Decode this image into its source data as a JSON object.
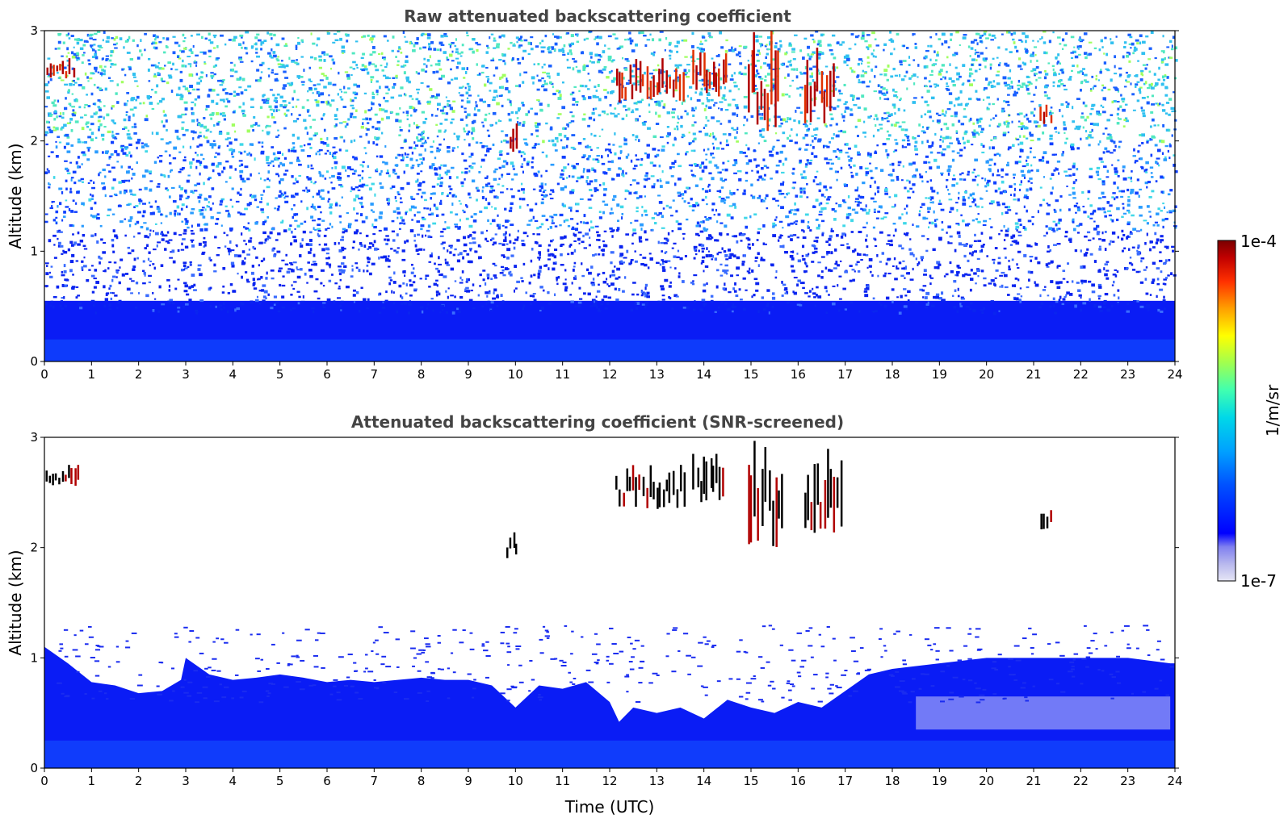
{
  "chart_data": [
    {
      "type": "heatmap",
      "title": "Raw attenuated backscattering coefficient",
      "xlabel": "",
      "ylabel": "Altitude (km)",
      "xlim": [
        0,
        24
      ],
      "ylim": [
        0,
        3
      ],
      "x_ticks": [
        "0",
        "1",
        "2",
        "3",
        "4",
        "5",
        "6",
        "7",
        "8",
        "9",
        "10",
        "11",
        "12",
        "13",
        "14",
        "15",
        "16",
        "17",
        "18",
        "19",
        "20",
        "21",
        "22",
        "23",
        "24"
      ],
      "y_ticks": [
        "0",
        "1",
        "2",
        "3"
      ],
      "grid": false,
      "background_signal": "boundary layer below ~0.5 km strongest (blue), noisy speckle above fading to sparse cyan/green near 3 km",
      "features": [
        {
          "time_start": 0.0,
          "time_end": 0.65,
          "alt_bottom": 2.55,
          "alt_top": 2.75,
          "level": "1e-4"
        },
        {
          "time_start": 9.85,
          "time_end": 10.05,
          "alt_bottom": 1.85,
          "alt_top": 2.2,
          "level": "1e-4"
        },
        {
          "time_start": 12.1,
          "time_end": 13.6,
          "alt_bottom": 2.35,
          "alt_top": 2.75,
          "level": "1e-4"
        },
        {
          "time_start": 13.75,
          "time_end": 14.5,
          "alt_bottom": 2.4,
          "alt_top": 2.85,
          "level": "1e-4"
        },
        {
          "time_start": 14.9,
          "time_end": 15.6,
          "alt_bottom": 2.0,
          "alt_top": 3.0,
          "level": "1e-4"
        },
        {
          "time_start": 16.1,
          "time_end": 16.8,
          "alt_bottom": 2.1,
          "alt_top": 2.9,
          "level": "1e-4"
        },
        {
          "time_start": 21.1,
          "time_end": 21.4,
          "alt_bottom": 2.15,
          "alt_top": 2.4,
          "level": "1e-4"
        }
      ]
    },
    {
      "type": "heatmap",
      "title": "Attenuated backscattering coefficient (SNR-screened)",
      "xlabel": "Time (UTC)",
      "ylabel": "Altitude (km)",
      "xlim": [
        0,
        24
      ],
      "ylim": [
        0,
        3
      ],
      "x_ticks": [
        "0",
        "1",
        "2",
        "3",
        "4",
        "5",
        "6",
        "7",
        "8",
        "9",
        "10",
        "11",
        "12",
        "13",
        "14",
        "15",
        "16",
        "17",
        "18",
        "19",
        "20",
        "21",
        "22",
        "23",
        "24"
      ],
      "y_ticks": [
        "0",
        "1",
        "2",
        "3"
      ],
      "grid": false,
      "boundary_layer_top_km": [
        [
          0.0,
          1.1
        ],
        [
          0.5,
          0.95
        ],
        [
          1.0,
          0.78
        ],
        [
          1.5,
          0.75
        ],
        [
          2.0,
          0.68
        ],
        [
          2.5,
          0.7
        ],
        [
          2.9,
          0.8
        ],
        [
          3.0,
          1.0
        ],
        [
          3.5,
          0.85
        ],
        [
          4.0,
          0.8
        ],
        [
          4.5,
          0.82
        ],
        [
          5.0,
          0.85
        ],
        [
          5.5,
          0.82
        ],
        [
          6.0,
          0.78
        ],
        [
          6.5,
          0.8
        ],
        [
          7.0,
          0.78
        ],
        [
          7.5,
          0.8
        ],
        [
          8.0,
          0.82
        ],
        [
          8.5,
          0.8
        ],
        [
          9.0,
          0.8
        ],
        [
          9.5,
          0.75
        ],
        [
          10.0,
          0.55
        ],
        [
          10.5,
          0.75
        ],
        [
          11.0,
          0.72
        ],
        [
          11.5,
          0.78
        ],
        [
          12.0,
          0.6
        ],
        [
          12.2,
          0.42
        ],
        [
          12.5,
          0.55
        ],
        [
          13.0,
          0.5
        ],
        [
          13.5,
          0.55
        ],
        [
          14.0,
          0.45
        ],
        [
          14.5,
          0.62
        ],
        [
          15.0,
          0.55
        ],
        [
          15.5,
          0.5
        ],
        [
          16.0,
          0.6
        ],
        [
          16.5,
          0.55
        ],
        [
          17.0,
          0.7
        ],
        [
          17.5,
          0.85
        ],
        [
          18.0,
          0.9
        ],
        [
          19.0,
          0.95
        ],
        [
          20.0,
          1.0
        ],
        [
          21.0,
          1.0
        ],
        [
          22.0,
          1.0
        ],
        [
          23.0,
          1.0
        ],
        [
          23.9,
          0.95
        ]
      ],
      "features": [
        {
          "time_start": 0.0,
          "time_end": 0.75,
          "alt_bottom": 2.55,
          "alt_top": 2.75,
          "level": "1e-4"
        },
        {
          "time_start": 9.8,
          "time_end": 10.05,
          "alt_bottom": 1.85,
          "alt_top": 2.2,
          "level": "1e-4"
        },
        {
          "time_start": 12.1,
          "time_end": 13.6,
          "alt_bottom": 2.35,
          "alt_top": 2.75,
          "level": "1e-4"
        },
        {
          "time_start": 13.75,
          "time_end": 14.45,
          "alt_bottom": 2.4,
          "alt_top": 2.85,
          "level": "1e-4"
        },
        {
          "time_start": 14.9,
          "time_end": 15.7,
          "alt_bottom": 2.0,
          "alt_top": 3.0,
          "level": "1e-4"
        },
        {
          "time_start": 16.1,
          "time_end": 16.95,
          "alt_bottom": 2.1,
          "alt_top": 2.9,
          "level": "1e-4"
        },
        {
          "time_start": 21.1,
          "time_end": 21.4,
          "alt_bottom": 2.15,
          "alt_top": 2.4,
          "level": "1e-4"
        }
      ]
    }
  ],
  "colorbar": {
    "label": "1/m/sr",
    "max_label": "1e-4",
    "min_label": "1e-7",
    "colormap": "jet",
    "colors": [
      "#e6e6f5",
      "#b8b8ee",
      "#8080f0",
      "#0000ff",
      "#0050ff",
      "#00a0ff",
      "#00d8e8",
      "#40ffb0",
      "#a0ff50",
      "#ffff00",
      "#ffa000",
      "#ff3000",
      "#c00000",
      "#7a0000"
    ]
  }
}
